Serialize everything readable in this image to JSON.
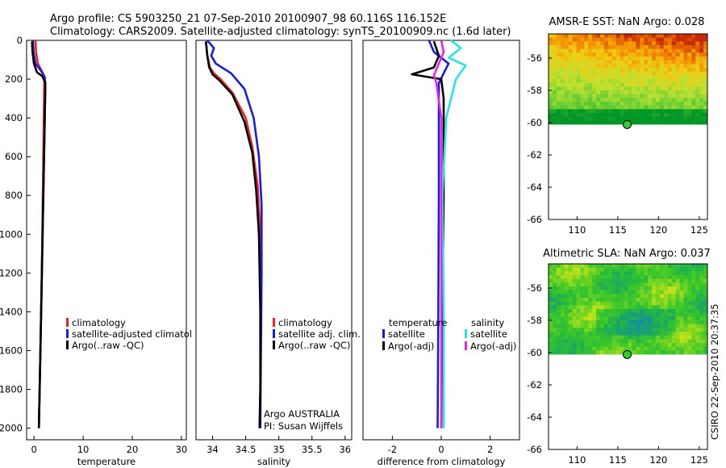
{
  "header": {
    "line1": "Argo profile: CS 5903250_21 07-Sep-2010 20100907_98 60.116S 116.152E",
    "line2": "Climatology: CARS2009. Satellite-adjusted climatology: synTS_20100909.nc (1.6d later)"
  },
  "colors": {
    "climatology": "#ee2222",
    "satellite": "#1a1ae6",
    "argo": "#000000",
    "sat_salinity": "#22e6e6",
    "argo_salinity": "#ee22ee",
    "marker": "#33cc33"
  },
  "chart_data": [
    {
      "type": "line",
      "name": "temperature-profile",
      "xlabel": "temperature",
      "ylabel": "",
      "xlim": [
        -1.5,
        31
      ],
      "ylim": [
        2060,
        0
      ],
      "x_ticks": [
        0,
        10,
        20,
        30
      ],
      "x_tick_labels": [
        "0",
        "10",
        "20",
        "30"
      ],
      "y_ticks": [
        0,
        200,
        400,
        600,
        800,
        1000,
        1200,
        1400,
        1600,
        1800,
        2000
      ],
      "y_tick_labels": [
        "0",
        "200",
        "400",
        "600",
        "800",
        "1000",
        "1200",
        "1400",
        "1600",
        "1800",
        "2000"
      ],
      "legend": [
        "climatology",
        "satellite-adjusted climatology",
        "Argo(..raw -QC)"
      ],
      "series": [
        {
          "name": "climatology",
          "x": [
            0.3,
            0.4,
            0.8,
            1.6,
            2.0,
            2.1,
            2.0,
            1.8,
            1.6,
            1.3,
            1.0
          ],
          "y": [
            0,
            60,
            120,
            160,
            180,
            210,
            400,
            800,
            1200,
            1600,
            2000
          ]
        },
        {
          "name": "satellite-adjusted climatology",
          "x": [
            -0.2,
            -0.1,
            0.3,
            1.5,
            2.2,
            2.3,
            2.2,
            1.9,
            1.6,
            1.3,
            1.0
          ],
          "y": [
            0,
            60,
            120,
            160,
            190,
            230,
            400,
            800,
            1200,
            1600,
            2000
          ]
        },
        {
          "name": "Argo(..raw -QC)",
          "x": [
            -0.4,
            -0.3,
            0.0,
            0.6,
            1.7,
            2.3,
            2.2,
            1.9,
            1.6,
            1.3,
            1.0
          ],
          "y": [
            5,
            60,
            120,
            165,
            185,
            220,
            400,
            800,
            1200,
            1600,
            2000
          ]
        }
      ]
    },
    {
      "type": "line",
      "name": "salinity-profile",
      "xlabel": "salinity",
      "xlim": [
        33.75,
        36.1
      ],
      "ylim": [
        2060,
        0
      ],
      "x_ticks": [
        34,
        34.5,
        35,
        35.5,
        36
      ],
      "x_tick_labels": [
        "34",
        "34.5",
        "35",
        "35.5",
        "36"
      ],
      "legend": [
        "climatology",
        "satellite adj. clim.",
        "Argo(..raw -QC)"
      ],
      "annotation": [
        "Argo AUSTRALIA",
        "PI: Susan Wijffels"
      ],
      "series": [
        {
          "name": "climatology",
          "x": [
            33.9,
            33.92,
            33.96,
            34.02,
            34.12,
            34.3,
            34.5,
            34.6,
            34.68,
            34.72,
            34.73,
            34.72,
            34.71
          ],
          "y": [
            10,
            80,
            140,
            170,
            200,
            270,
            400,
            550,
            750,
            1000,
            1400,
            1800,
            2000
          ]
        },
        {
          "name": "satellite adj. clim.",
          "x": [
            33.92,
            34.02,
            33.98,
            34.05,
            34.28,
            34.48,
            34.62,
            34.7,
            34.74,
            34.74,
            34.73,
            34.72
          ],
          "y": [
            0,
            40,
            80,
            120,
            170,
            250,
            400,
            600,
            850,
            1200,
            1600,
            2000
          ]
        },
        {
          "name": "Argo(..raw -QC)",
          "x": [
            33.9,
            33.92,
            33.95,
            34.0,
            34.1,
            34.3,
            34.48,
            34.6,
            34.66,
            34.7,
            34.72,
            34.72,
            34.71
          ],
          "y": [
            5,
            80,
            140,
            175,
            205,
            280,
            420,
            580,
            780,
            1000,
            1400,
            1800,
            2000
          ]
        }
      ]
    },
    {
      "type": "line",
      "name": "difference-profile",
      "xlabel": "difference from climatology",
      "xlim": [
        -3.2,
        3.2
      ],
      "ylim": [
        2060,
        0
      ],
      "x_ticks": [
        -2,
        0,
        2
      ],
      "x_tick_labels": [
        "-2",
        "0",
        "2"
      ],
      "legend_groups": [
        {
          "title": "temperature",
          "items": [
            "satellite",
            "Argo(-adj)"
          ]
        },
        {
          "title": "salinity",
          "items": [
            "satellite",
            "Argo(-adj)"
          ]
        }
      ],
      "series": [
        {
          "name": "temperature satellite",
          "x": [
            -0.5,
            -0.3,
            0.3,
            0.1,
            -0.1,
            -0.1,
            -0.1,
            -0.12,
            -0.15
          ],
          "y": [
            0,
            60,
            120,
            170,
            220,
            400,
            800,
            1400,
            2000
          ]
        },
        {
          "name": "temperature Argo(-adj)",
          "x": [
            -0.3,
            -0.1,
            -0.3,
            -1.2,
            0.0,
            0.1,
            0.1,
            0.05,
            0.0
          ],
          "y": [
            5,
            80,
            140,
            175,
            200,
            300,
            800,
            1400,
            2000
          ]
        },
        {
          "name": "salinity satellite",
          "x": [
            0.4,
            0.8,
            0.3,
            1.0,
            0.6,
            0.2,
            0.05,
            0.1,
            0.1
          ],
          "y": [
            0,
            40,
            90,
            130,
            200,
            400,
            800,
            1400,
            2000
          ]
        },
        {
          "name": "salinity Argo(-adj)",
          "x": [
            0.0,
            0.1,
            -0.1,
            -0.3,
            -0.2,
            0.0,
            0.0,
            0.0,
            0.0
          ],
          "y": [
            0,
            60,
            120,
            180,
            220,
            400,
            800,
            1400,
            2000
          ]
        }
      ]
    },
    {
      "type": "heatmap",
      "name": "amsr-e-sst-map",
      "title": "AMSR-E SST: NaN Argo: 0.028",
      "xlim": [
        106.5,
        126
      ],
      "ylim": [
        -66,
        -54.5
      ],
      "x_ticks": [
        110,
        115,
        120,
        125
      ],
      "x_tick_labels": [
        "110",
        "115",
        "120",
        "125"
      ],
      "y_ticks": [
        -56,
        -58,
        -60,
        -62,
        -64,
        -66
      ],
      "y_tick_labels": [
        "-56",
        "-58",
        "-60",
        "-62",
        "-64",
        "-66"
      ],
      "data_extent_lat": [
        -60.1,
        -54.5
      ],
      "argo_position": {
        "lon": 116.152,
        "lat": -60.116
      }
    },
    {
      "type": "heatmap",
      "name": "altimetric-sla-map",
      "title": "Altimetric SLA: NaN Argo: 0.037",
      "xlim": [
        106.5,
        126
      ],
      "ylim": [
        -66,
        -54.5
      ],
      "x_ticks": [
        110,
        115,
        120,
        125
      ],
      "x_tick_labels": [
        "110",
        "115",
        "120",
        "125"
      ],
      "y_ticks": [
        -56,
        -58,
        -60,
        -62,
        -64,
        -66
      ],
      "y_tick_labels": [
        "-56",
        "-58",
        "-60",
        "-62",
        "-64",
        "-66"
      ],
      "data_extent_lat": [
        -60.1,
        -54.5
      ],
      "argo_position": {
        "lon": 116.152,
        "lat": -60.116
      }
    }
  ],
  "footer": {
    "credit": "CSIRO 22-Sep-2010 20:37:35"
  }
}
